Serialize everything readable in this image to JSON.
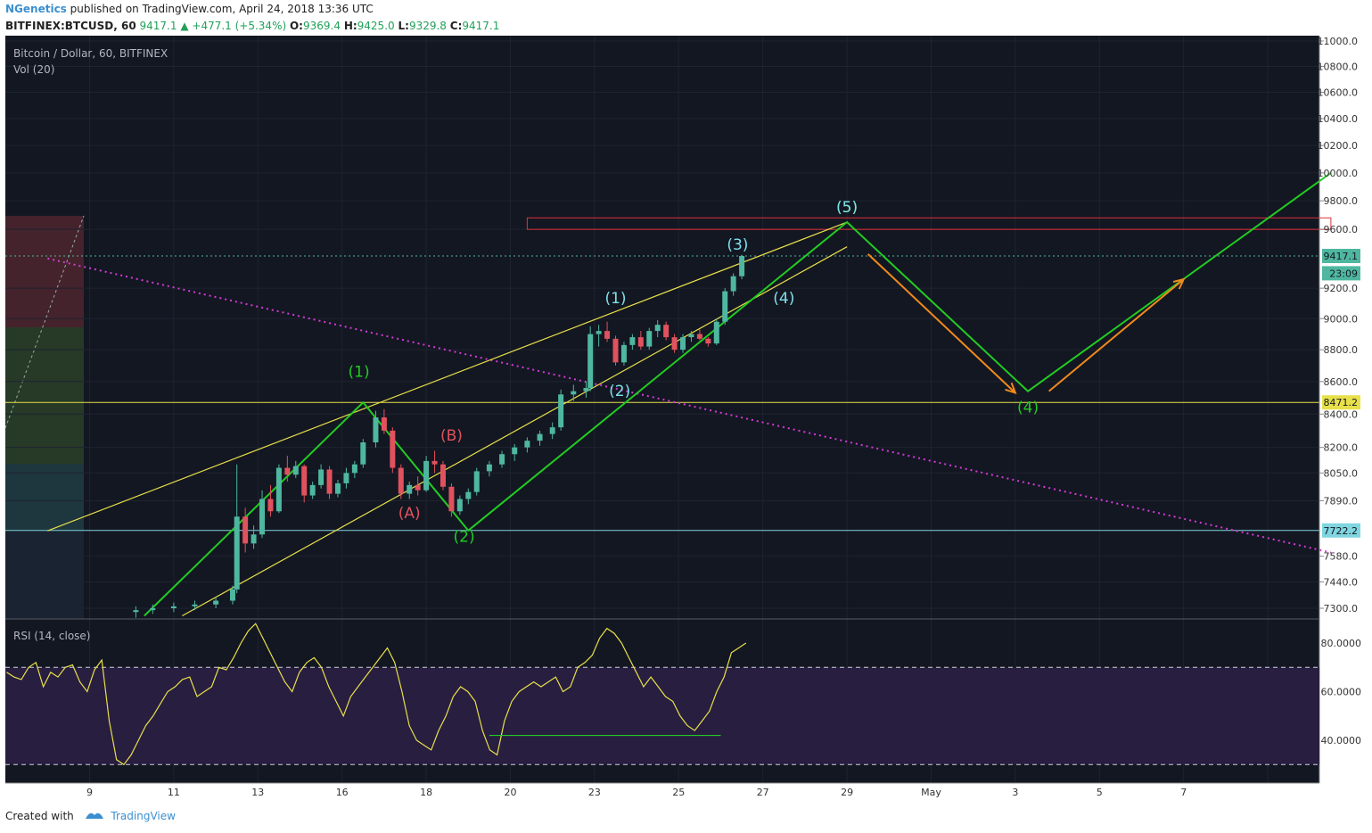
{
  "header": {
    "author": "NGenetics",
    "published": "published on TradingView.com, April 24, 2018 13:36 UTC",
    "symbol": "BITFINEX:BTCUSD, 60",
    "last": "9417.1",
    "change_arrow": "▲",
    "change": "+477.1 (+5.34%)",
    "o_label": "O:",
    "o": "9369.4",
    "h_label": "H:",
    "h": "9425.0",
    "l_label": "L:",
    "l": "9329.8",
    "c_label": "C:",
    "c": "9417.1"
  },
  "pane_labels": {
    "main": "Bitcoin / Dollar, 60, BITFINEX",
    "vol": "Vol (20)",
    "rsi": "RSI (14, close)"
  },
  "footer": {
    "created": "Created with",
    "brand": "TradingView"
  },
  "colors": {
    "bg": "#131722",
    "up": "#4fb7a0",
    "down": "#e0525d",
    "wave": "#22cc22",
    "channel": "#e8e04a",
    "trend": "#d63ad6",
    "arrow": "#f08a1c",
    "rsi_line": "#e8e04a"
  },
  "chart_data": {
    "type": "candlestick",
    "title": "Bitcoin / Dollar, 60, BITFINEX",
    "price_axis": {
      "ticks": [
        "11000.0",
        "10800.0",
        "10600.0",
        "10400.0",
        "10200.0",
        "10000.0",
        "9800.0",
        "9600.0",
        "9200.0",
        "9000.0",
        "8800.0",
        "8600.0",
        "8400.0",
        "8200.0",
        "8050.0",
        "7890.0",
        "7580.0",
        "7440.0",
        "7300.0"
      ],
      "scale": "log"
    },
    "price_labels": [
      {
        "text": "9417.1",
        "value": 9417.1,
        "color": "#4fb7a0"
      },
      {
        "text": "23:09",
        "value": 9300,
        "color": "#4fb7a0"
      },
      {
        "text": "8471.2",
        "value": 8471.2,
        "color": "#e8e04a"
      },
      {
        "text": "7722.2",
        "value": 7722.2,
        "color": "#7fd6e0"
      }
    ],
    "date_axis": [
      "9",
      "11",
      "13",
      "16",
      "18",
      "20",
      "23",
      "25",
      "27",
      "29",
      "May",
      "3",
      "5",
      "7"
    ],
    "candles": [
      {
        "d": 10.1,
        "o": 7280,
        "h": 7310,
        "l": 7250,
        "c": 7290
      },
      {
        "d": 10.5,
        "o": 7290,
        "h": 7320,
        "l": 7270,
        "c": 7300
      },
      {
        "d": 11.0,
        "o": 7300,
        "h": 7330,
        "l": 7280,
        "c": 7310
      },
      {
        "d": 11.5,
        "o": 7310,
        "h": 7340,
        "l": 7290,
        "c": 7320
      },
      {
        "d": 12.0,
        "o": 7320,
        "h": 7360,
        "l": 7300,
        "c": 7340
      },
      {
        "d": 12.4,
        "o": 7340,
        "h": 7420,
        "l": 7320,
        "c": 7400
      },
      {
        "d": 12.5,
        "o": 7400,
        "h": 8100,
        "l": 7380,
        "c": 7800
      },
      {
        "d": 12.7,
        "o": 7800,
        "h": 7850,
        "l": 7600,
        "c": 7650
      },
      {
        "d": 12.9,
        "o": 7650,
        "h": 7750,
        "l": 7620,
        "c": 7700
      },
      {
        "d": 13.1,
        "o": 7700,
        "h": 7950,
        "l": 7680,
        "c": 7900
      },
      {
        "d": 13.3,
        "o": 7900,
        "h": 7980,
        "l": 7800,
        "c": 7830
      },
      {
        "d": 13.5,
        "o": 7830,
        "h": 8100,
        "l": 7820,
        "c": 8080
      },
      {
        "d": 13.7,
        "o": 8080,
        "h": 8150,
        "l": 8000,
        "c": 8040
      },
      {
        "d": 13.9,
        "o": 8040,
        "h": 8120,
        "l": 8020,
        "c": 8090
      },
      {
        "d": 14.1,
        "o": 8090,
        "h": 8100,
        "l": 7880,
        "c": 7920
      },
      {
        "d": 14.3,
        "o": 7920,
        "h": 8000,
        "l": 7900,
        "c": 7980
      },
      {
        "d": 14.5,
        "o": 7980,
        "h": 8100,
        "l": 7960,
        "c": 8070
      },
      {
        "d": 14.7,
        "o": 8070,
        "h": 8090,
        "l": 7900,
        "c": 7930
      },
      {
        "d": 14.9,
        "o": 7930,
        "h": 8010,
        "l": 7910,
        "c": 7990
      },
      {
        "d": 15.1,
        "o": 7990,
        "h": 8080,
        "l": 7960,
        "c": 8050
      },
      {
        "d": 15.3,
        "o": 8050,
        "h": 8120,
        "l": 8020,
        "c": 8100
      },
      {
        "d": 15.5,
        "o": 8100,
        "h": 8250,
        "l": 8080,
        "c": 8230
      },
      {
        "d": 15.8,
        "o": 8230,
        "h": 8420,
        "l": 8200,
        "c": 8380
      },
      {
        "d": 16.0,
        "o": 8380,
        "h": 8430,
        "l": 8280,
        "c": 8300
      },
      {
        "d": 16.2,
        "o": 8300,
        "h": 8320,
        "l": 8050,
        "c": 8080
      },
      {
        "d": 16.4,
        "o": 8080,
        "h": 8100,
        "l": 7900,
        "c": 7930
      },
      {
        "d": 16.6,
        "o": 7930,
        "h": 8000,
        "l": 7900,
        "c": 7980
      },
      {
        "d": 16.8,
        "o": 7980,
        "h": 8030,
        "l": 7920,
        "c": 7950
      },
      {
        "d": 17.0,
        "o": 7950,
        "h": 8150,
        "l": 7940,
        "c": 8120
      },
      {
        "d": 17.2,
        "o": 8120,
        "h": 8180,
        "l": 8050,
        "c": 8100
      },
      {
        "d": 17.4,
        "o": 8100,
        "h": 8120,
        "l": 7950,
        "c": 7970
      },
      {
        "d": 17.6,
        "o": 7970,
        "h": 7990,
        "l": 7800,
        "c": 7830
      },
      {
        "d": 17.8,
        "o": 7830,
        "h": 7920,
        "l": 7810,
        "c": 7900
      },
      {
        "d": 18.0,
        "o": 7900,
        "h": 7960,
        "l": 7870,
        "c": 7940
      },
      {
        "d": 18.2,
        "o": 7940,
        "h": 8080,
        "l": 7920,
        "c": 8060
      },
      {
        "d": 18.5,
        "o": 8060,
        "h": 8120,
        "l": 8030,
        "c": 8100
      },
      {
        "d": 18.8,
        "o": 8100,
        "h": 8180,
        "l": 8080,
        "c": 8160
      },
      {
        "d": 19.1,
        "o": 8160,
        "h": 8220,
        "l": 8120,
        "c": 8200
      },
      {
        "d": 19.4,
        "o": 8200,
        "h": 8260,
        "l": 8170,
        "c": 8240
      },
      {
        "d": 19.7,
        "o": 8240,
        "h": 8300,
        "l": 8210,
        "c": 8280
      },
      {
        "d": 20.0,
        "o": 8280,
        "h": 8350,
        "l": 8250,
        "c": 8320
      },
      {
        "d": 20.2,
        "o": 8320,
        "h": 8550,
        "l": 8300,
        "c": 8520
      },
      {
        "d": 20.5,
        "o": 8520,
        "h": 8580,
        "l": 8480,
        "c": 8540
      },
      {
        "d": 20.8,
        "o": 8540,
        "h": 8600,
        "l": 8500,
        "c": 8560
      },
      {
        "d": 20.9,
        "o": 8560,
        "h": 8950,
        "l": 8540,
        "c": 8900
      },
      {
        "d": 21.1,
        "o": 8900,
        "h": 8960,
        "l": 8820,
        "c": 8920
      },
      {
        "d": 21.3,
        "o": 8920,
        "h": 8980,
        "l": 8850,
        "c": 8870
      },
      {
        "d": 21.5,
        "o": 8870,
        "h": 8890,
        "l": 8700,
        "c": 8720
      },
      {
        "d": 21.7,
        "o": 8720,
        "h": 8850,
        "l": 8700,
        "c": 8830
      },
      {
        "d": 21.9,
        "o": 8830,
        "h": 8900,
        "l": 8800,
        "c": 8880
      },
      {
        "d": 22.1,
        "o": 8880,
        "h": 8920,
        "l": 8800,
        "c": 8820
      },
      {
        "d": 22.3,
        "o": 8820,
        "h": 8940,
        "l": 8800,
        "c": 8920
      },
      {
        "d": 22.5,
        "o": 8920,
        "h": 8990,
        "l": 8880,
        "c": 8960
      },
      {
        "d": 22.7,
        "o": 8960,
        "h": 8980,
        "l": 8860,
        "c": 8880
      },
      {
        "d": 22.9,
        "o": 8880,
        "h": 8900,
        "l": 8780,
        "c": 8800
      },
      {
        "d": 23.1,
        "o": 8800,
        "h": 8900,
        "l": 8780,
        "c": 8880
      },
      {
        "d": 23.3,
        "o": 8880,
        "h": 8920,
        "l": 8850,
        "c": 8900
      },
      {
        "d": 23.5,
        "o": 8900,
        "h": 8930,
        "l": 8860,
        "c": 8870
      },
      {
        "d": 23.7,
        "o": 8870,
        "h": 8880,
        "l": 8820,
        "c": 8840
      },
      {
        "d": 23.9,
        "o": 8840,
        "h": 9000,
        "l": 8830,
        "c": 8980
      },
      {
        "d": 24.1,
        "o": 8980,
        "h": 9200,
        "l": 8960,
        "c": 9180
      },
      {
        "d": 24.3,
        "o": 9180,
        "h": 9300,
        "l": 9150,
        "c": 9280
      },
      {
        "d": 24.5,
        "o": 9280,
        "h": 9425,
        "l": 9260,
        "c": 9417.1
      }
    ],
    "annotations": [
      {
        "text": "(1)",
        "d": 15.4,
        "v": 8630,
        "color": "#22cc22"
      },
      {
        "text": "(2)",
        "d": 17.9,
        "v": 7660,
        "color": "#22cc22"
      },
      {
        "text": "(A)",
        "d": 16.6,
        "v": 7790,
        "color": "#e0525d"
      },
      {
        "text": "(B)",
        "d": 17.6,
        "v": 8240,
        "color": "#e0525d"
      },
      {
        "text": "(1)",
        "d": 21.5,
        "v": 9100,
        "color": "#7fe0ea"
      },
      {
        "text": "(2)",
        "d": 21.6,
        "v": 8510,
        "color": "#7fe0ea"
      },
      {
        "text": "(3)",
        "d": 24.4,
        "v": 9460,
        "color": "#7fe0ea"
      },
      {
        "text": "(4)",
        "d": 25.5,
        "v": 9100,
        "color": "#7fe0ea"
      },
      {
        "text": "(5)",
        "d": 27.0,
        "v": 9720,
        "color": "#22cc22"
      },
      {
        "text": "(5)",
        "d": 27.0,
        "v": 9720,
        "color": "#7fe0ea"
      },
      {
        "text": "(4)",
        "d": 31.3,
        "v": 8410,
        "color": "#22cc22"
      }
    ],
    "wave_path": [
      [
        10.3,
        7260
      ],
      [
        15.5,
        8471
      ],
      [
        18.0,
        7722
      ],
      [
        27.0,
        9650
      ],
      [
        31.3,
        8540
      ],
      [
        38.5,
        10000
      ]
    ],
    "channel_lines": [
      {
        "from": [
          8.0,
          7720
        ],
        "to": [
          27.0,
          9650
        ]
      },
      {
        "from": [
          11.2,
          7260
        ],
        "to": [
          27.0,
          9480
        ]
      }
    ],
    "trend_line": {
      "from": [
        8.0,
        9400
      ],
      "to": [
        38.5,
        7600
      ]
    },
    "resistance_box": {
      "d1": 19.4,
      "d2": 38.5,
      "v1": 9600,
      "v2": 9680
    },
    "arrows": [
      {
        "from": [
          27.5,
          9430
        ],
        "to": [
          31.0,
          8530
        ]
      },
      {
        "from": [
          31.8,
          8540
        ],
        "to": [
          35.0,
          9260
        ]
      }
    ],
    "horizontal_levels": [
      {
        "value": 8471.2,
        "color": "#e8e04a"
      },
      {
        "value": 7722.2,
        "color": "#7fd6e0"
      }
    ],
    "rsi": {
      "axis_ticks": [
        "80.0000",
        "60.0000",
        "40.0000"
      ],
      "upper": 70,
      "lower": 30,
      "values": [
        68,
        66,
        65,
        70,
        72,
        62,
        68,
        66,
        70,
        71,
        64,
        60,
        69,
        73,
        48,
        32,
        30,
        34,
        40,
        46,
        50,
        55,
        60,
        62,
        65,
        66,
        58,
        60,
        62,
        70,
        69,
        74,
        80,
        85,
        88,
        82,
        76,
        70,
        64,
        60,
        68,
        72,
        74,
        70,
        62,
        56,
        50,
        58,
        62,
        66,
        70,
        74,
        78,
        72,
        60,
        46,
        40,
        38,
        36,
        44,
        50,
        58,
        62,
        60,
        56,
        44,
        36,
        34,
        48,
        56,
        60,
        62,
        64,
        62,
        64,
        66,
        60,
        62,
        70,
        72,
        75,
        82,
        86,
        84,
        80,
        74,
        68,
        62,
        66,
        62,
        58,
        56,
        50,
        46,
        44,
        48,
        52,
        60,
        66,
        76,
        78,
        80
      ]
    }
  }
}
